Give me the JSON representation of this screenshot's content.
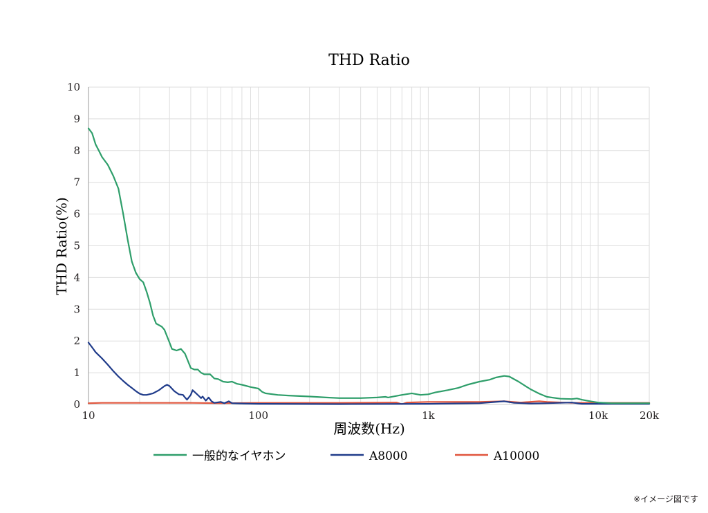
{
  "chart_data": {
    "type": "line",
    "title": "THD Ratio",
    "xlabel": "周波数(Hz)",
    "ylabel": "THD Ratio(%)",
    "xscale": "log",
    "xlim": [
      10,
      20000
    ],
    "ylim": [
      0,
      10
    ],
    "grid": true,
    "legend_position": "bottom",
    "x_ticks": [
      {
        "value": 10,
        "label": "10"
      },
      {
        "value": 100,
        "label": "100"
      },
      {
        "value": 1000,
        "label": "1k"
      },
      {
        "value": 10000,
        "label": "10k"
      },
      {
        "value": 20000,
        "label": "20k"
      }
    ],
    "y_ticks": [
      0,
      1,
      2,
      3,
      4,
      5,
      6,
      7,
      8,
      9,
      10
    ],
    "series": [
      {
        "name": "一般的なイヤホン",
        "color": "#2e9e6a",
        "points": [
          [
            10,
            8.7
          ],
          [
            10.5,
            8.55
          ],
          [
            11,
            8.2
          ],
          [
            11.5,
            8.0
          ],
          [
            12,
            7.8
          ],
          [
            13,
            7.55
          ],
          [
            14,
            7.2
          ],
          [
            15,
            6.8
          ],
          [
            16,
            6.0
          ],
          [
            17,
            5.2
          ],
          [
            18,
            4.5
          ],
          [
            19,
            4.15
          ],
          [
            20,
            3.95
          ],
          [
            21,
            3.85
          ],
          [
            22,
            3.55
          ],
          [
            23,
            3.2
          ],
          [
            24,
            2.8
          ],
          [
            25,
            2.55
          ],
          [
            27,
            2.45
          ],
          [
            28,
            2.35
          ],
          [
            30,
            1.95
          ],
          [
            31,
            1.75
          ],
          [
            33,
            1.7
          ],
          [
            35,
            1.75
          ],
          [
            37,
            1.6
          ],
          [
            40,
            1.15
          ],
          [
            42,
            1.1
          ],
          [
            44,
            1.1
          ],
          [
            46,
            1.0
          ],
          [
            48,
            0.95
          ],
          [
            52,
            0.95
          ],
          [
            55,
            0.82
          ],
          [
            58,
            0.8
          ],
          [
            62,
            0.72
          ],
          [
            66,
            0.7
          ],
          [
            70,
            0.72
          ],
          [
            75,
            0.65
          ],
          [
            80,
            0.62
          ],
          [
            90,
            0.55
          ],
          [
            100,
            0.5
          ],
          [
            105,
            0.4
          ],
          [
            110,
            0.35
          ],
          [
            130,
            0.3
          ],
          [
            150,
            0.28
          ],
          [
            200,
            0.25
          ],
          [
            250,
            0.22
          ],
          [
            300,
            0.2
          ],
          [
            400,
            0.2
          ],
          [
            500,
            0.22
          ],
          [
            560,
            0.24
          ],
          [
            580,
            0.22
          ],
          [
            700,
            0.3
          ],
          [
            800,
            0.35
          ],
          [
            900,
            0.3
          ],
          [
            1000,
            0.32
          ],
          [
            1100,
            0.38
          ],
          [
            1300,
            0.45
          ],
          [
            1500,
            0.52
          ],
          [
            1700,
            0.62
          ],
          [
            2000,
            0.72
          ],
          [
            2300,
            0.78
          ],
          [
            2500,
            0.85
          ],
          [
            2800,
            0.9
          ],
          [
            3000,
            0.88
          ],
          [
            3400,
            0.72
          ],
          [
            4000,
            0.48
          ],
          [
            4500,
            0.34
          ],
          [
            5000,
            0.24
          ],
          [
            6000,
            0.18
          ],
          [
            7000,
            0.17
          ],
          [
            7500,
            0.19
          ],
          [
            8000,
            0.15
          ],
          [
            9000,
            0.1
          ],
          [
            10000,
            0.06
          ],
          [
            12000,
            0.04
          ],
          [
            20000,
            0.04
          ]
        ]
      },
      {
        "name": "A8000",
        "color": "#1f3b8a",
        "points": [
          [
            10,
            1.95
          ],
          [
            10.5,
            1.8
          ],
          [
            11,
            1.65
          ],
          [
            12,
            1.45
          ],
          [
            13,
            1.25
          ],
          [
            14,
            1.05
          ],
          [
            15,
            0.88
          ],
          [
            16,
            0.74
          ],
          [
            17,
            0.62
          ],
          [
            18,
            0.52
          ],
          [
            19,
            0.42
          ],
          [
            20,
            0.34
          ],
          [
            21,
            0.3
          ],
          [
            22,
            0.3
          ],
          [
            24,
            0.35
          ],
          [
            26,
            0.45
          ],
          [
            28,
            0.58
          ],
          [
            29,
            0.62
          ],
          [
            30,
            0.58
          ],
          [
            32,
            0.42
          ],
          [
            34,
            0.32
          ],
          [
            36,
            0.3
          ],
          [
            37,
            0.22
          ],
          [
            38,
            0.15
          ],
          [
            40,
            0.3
          ],
          [
            41,
            0.45
          ],
          [
            43,
            0.35
          ],
          [
            45,
            0.25
          ],
          [
            46,
            0.2
          ],
          [
            47,
            0.25
          ],
          [
            49,
            0.12
          ],
          [
            51,
            0.22
          ],
          [
            53,
            0.1
          ],
          [
            55,
            0.05
          ],
          [
            60,
            0.08
          ],
          [
            63,
            0.04
          ],
          [
            67,
            0.1
          ],
          [
            70,
            0.04
          ],
          [
            80,
            0.03
          ],
          [
            100,
            0.02
          ],
          [
            300,
            0.01
          ],
          [
            1000,
            0.02
          ],
          [
            2000,
            0.04
          ],
          [
            2800,
            0.1
          ],
          [
            3200,
            0.05
          ],
          [
            4000,
            0.03
          ],
          [
            5000,
            0.04
          ],
          [
            7000,
            0.06
          ],
          [
            8000,
            0.02
          ],
          [
            20000,
            0.02
          ]
        ]
      },
      {
        "name": "A10000",
        "color": "#e0553c",
        "points": [
          [
            10,
            0.04
          ],
          [
            12,
            0.05
          ],
          [
            20,
            0.05
          ],
          [
            40,
            0.05
          ],
          [
            60,
            0.04
          ],
          [
            100,
            0.05
          ],
          [
            300,
            0.05
          ],
          [
            650,
            0.06
          ],
          [
            700,
            0.01
          ],
          [
            750,
            0.06
          ],
          [
            1000,
            0.08
          ],
          [
            2000,
            0.08
          ],
          [
            2800,
            0.1
          ],
          [
            3500,
            0.06
          ],
          [
            4500,
            0.1
          ],
          [
            5000,
            0.08
          ],
          [
            7000,
            0.05
          ],
          [
            10000,
            0.05
          ],
          [
            20000,
            0.05
          ]
        ]
      }
    ]
  },
  "note": "※イメージ図です"
}
